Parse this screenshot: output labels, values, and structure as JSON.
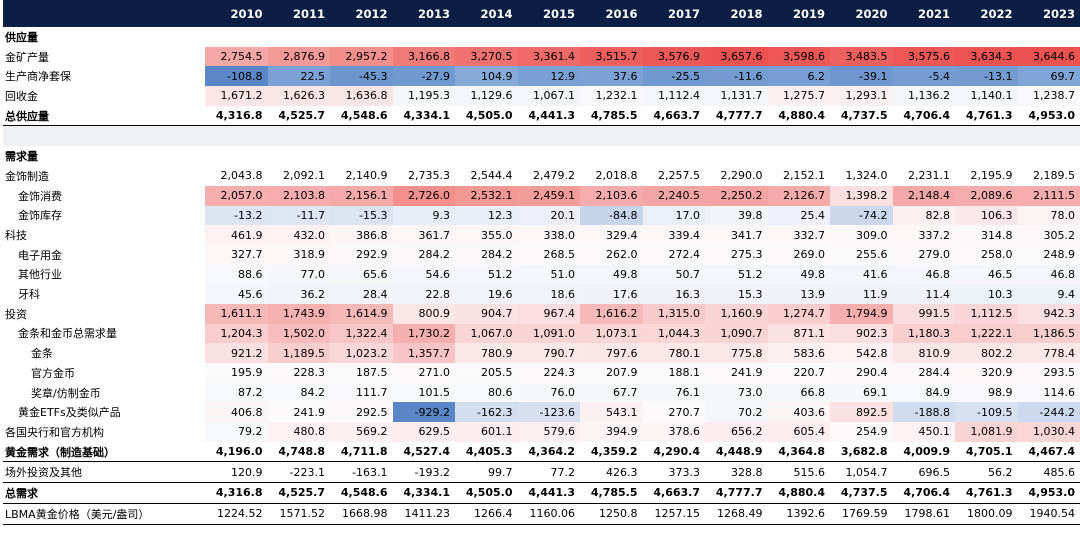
{
  "years": [
    "2010",
    "2011",
    "2012",
    "2013",
    "2014",
    "2015",
    "2016",
    "2017",
    "2018",
    "2019",
    "2020",
    "2021",
    "2022",
    "2023"
  ],
  "rows": [
    {
      "type": "section",
      "label": "供应量"
    },
    {
      "type": "row",
      "label": "金矿产量",
      "indent": 0,
      "values": [
        "2,754.5",
        "2,876.9",
        "2,957.2",
        "3,166.8",
        "3,270.5",
        "3,361.4",
        "3,515.7",
        "3,576.9",
        "3,657.6",
        "3,598.6",
        "3,483.5",
        "3,575.6",
        "3,634.3",
        "3,644.6"
      ],
      "colors": [
        "#f4a8a6",
        "#f39a98",
        "#f28f8d",
        "#f17b79",
        "#f07270",
        "#ef6a68",
        "#ee5e5c",
        "#ed5957",
        "#ec5250",
        "#ed5755",
        "#ee605e",
        "#ed5856",
        "#ec5351",
        "#ec5250"
      ]
    },
    {
      "type": "row",
      "label": "生产商净套保",
      "indent": 0,
      "values": [
        "-108.8",
        "22.5",
        "-45.3",
        "-27.9",
        "104.9",
        "12.9",
        "37.6",
        "-25.5",
        "-11.6",
        "6.2",
        "-39.1",
        "-5.4",
        "-13.1",
        "69.7"
      ],
      "colors": [
        "#5b87c8",
        "#7aa0d4",
        "#6d96cf",
        "#7099d1",
        "#86a9d8",
        "#79a0d4",
        "#7ca2d5",
        "#7199d1",
        "#739bd2",
        "#779fd3",
        "#6e97d0",
        "#749cd2",
        "#739bd2",
        "#7fa4d6"
      ]
    },
    {
      "type": "row",
      "label": "回收金",
      "indent": 0,
      "values": [
        "1,671.2",
        "1,626.3",
        "1,636.8",
        "1,195.3",
        "1,129.6",
        "1,067.1",
        "1,232.1",
        "1,112.4",
        "1,131.7",
        "1,275.7",
        "1,293.1",
        "1,136.2",
        "1,140.1",
        "1,238.7"
      ],
      "colors": [
        "#fbe5e6",
        "#fbe6e7",
        "#fbe6e7",
        "#f6f7fb",
        "#f4f6fb",
        "#f3f5fb",
        "#f8f8fc",
        "#f4f6fb",
        "#f4f6fb",
        "#faf0f2",
        "#faeff1",
        "#f4f6fb",
        "#f4f6fb",
        "#f8f8fc"
      ]
    },
    {
      "type": "bold",
      "label": "总供应量",
      "values": [
        "4,316.8",
        "4,525.7",
        "4,548.6",
        "4,334.1",
        "4,505.0",
        "4,441.3",
        "4,785.5",
        "4,663.7",
        "4,777.7",
        "4,880.4",
        "4,737.5",
        "4,706.4",
        "4,761.3",
        "4,953.0"
      ]
    },
    {
      "type": "gap"
    },
    {
      "type": "section",
      "label": "需求量"
    },
    {
      "type": "row",
      "label": "金饰制造",
      "indent": 0,
      "values": [
        "2,043.8",
        "2,092.1",
        "2,140.9",
        "2,735.3",
        "2,544.4",
        "2,479.2",
        "2,018.8",
        "2,257.5",
        "2,290.0",
        "2,152.1",
        "1,324.0",
        "2,231.1",
        "2,195.9",
        "2,189.5"
      ],
      "colors": [
        "",
        "",
        "",
        "",
        "",
        "",
        "",
        "",
        "",
        "",
        "",
        "",
        "",
        ""
      ]
    },
    {
      "type": "row",
      "label": "金饰消费",
      "indent": 1,
      "values": [
        "2,057.0",
        "2,103.8",
        "2,156.1",
        "2,726.0",
        "2,532.1",
        "2,459.1",
        "2,103.6",
        "2,240.5",
        "2,250.2",
        "2,126.7",
        "1,398.2",
        "2,148.4",
        "2,089.6",
        "2,111.5"
      ],
      "colors": [
        "#f6aeae",
        "#f6acac",
        "#f5a9a9",
        "#f3908e",
        "#f49896",
        "#f49d9b",
        "#f6acac",
        "#f5a5a4",
        "#f5a4a3",
        "#f6abab",
        "#fbdfe0",
        "#f5a8a8",
        "#f6adad",
        "#f6acac"
      ]
    },
    {
      "type": "row",
      "label": "金饰库存",
      "indent": 1,
      "values": [
        "-13.2",
        "-11.7",
        "-15.3",
        "9.3",
        "12.3",
        "20.1",
        "-84.8",
        "17.0",
        "39.8",
        "25.4",
        "-74.2",
        "82.8",
        "106.3",
        "78.0"
      ],
      "colors": [
        "#dde5f3",
        "#dee6f3",
        "#dce4f2",
        "#e8edf7",
        "#e9eef7",
        "#eceff8",
        "#c6d4ec",
        "#ebeff8",
        "#f3f4fa",
        "#eef1f9",
        "#cad7ed",
        "#faf0f2",
        "#fae8ea",
        "#fbf2f4"
      ]
    },
    {
      "type": "row",
      "label": "科技",
      "indent": 0,
      "values": [
        "461.9",
        "432.0",
        "386.8",
        "361.7",
        "355.0",
        "338.0",
        "329.4",
        "339.4",
        "341.7",
        "332.7",
        "309.0",
        "337.2",
        "314.8",
        "305.2"
      ],
      "colors": [
        "#fdf1f2",
        "#fdf2f3",
        "#fdf4f5",
        "#fdf5f6",
        "#fdf5f6",
        "#fdf6f7",
        "#fdf6f7",
        "#fdf6f7",
        "#fdf6f7",
        "#fdf6f7",
        "#fcf7f8",
        "#fdf6f7",
        "#fcf7f8",
        "#fcf7f8"
      ]
    },
    {
      "type": "row",
      "label": "电子用金",
      "indent": 1,
      "values": [
        "327.7",
        "318.9",
        "292.9",
        "284.2",
        "284.2",
        "268.5",
        "262.0",
        "272.4",
        "275.3",
        "269.0",
        "255.6",
        "279.0",
        "258.0",
        "248.9"
      ],
      "colors": [
        "#fdf6f7",
        "#fdf6f7",
        "#fcf8f9",
        "#fcf8f9",
        "#fcf8f9",
        "#fcf9fa",
        "#fcf9fa",
        "#fcf9fa",
        "#fcf9fa",
        "#fcf9fa",
        "#fbfafb",
        "#fcf8f9",
        "#fcf9fa",
        "#fbfafb"
      ]
    },
    {
      "type": "row",
      "label": "其他行业",
      "indent": 1,
      "values": [
        "88.6",
        "77.0",
        "65.6",
        "54.6",
        "51.2",
        "51.0",
        "49.8",
        "50.7",
        "51.2",
        "49.8",
        "41.6",
        "46.8",
        "46.5",
        "46.8"
      ],
      "colors": [
        "#f7f8fc",
        "#f6f7fb",
        "#f5f7fb",
        "#f4f6fb",
        "#f4f6fb",
        "#f4f6fb",
        "#f4f6fb",
        "#f4f6fb",
        "#f4f6fb",
        "#f4f6fb",
        "#f3f5fa",
        "#f4f6fb",
        "#f4f6fb",
        "#f4f6fb"
      ]
    },
    {
      "type": "row",
      "label": "牙科",
      "indent": 1,
      "values": [
        "45.6",
        "36.2",
        "28.4",
        "22.8",
        "19.6",
        "18.6",
        "17.6",
        "16.3",
        "15.3",
        "13.9",
        "11.9",
        "11.4",
        "10.3",
        "9.4"
      ],
      "colors": [
        "#f4f6fb",
        "#f2f4fa",
        "#f1f4fa",
        "#f0f3f9",
        "#f0f3f9",
        "#f0f3f9",
        "#eff2f9",
        "#eff2f9",
        "#eff2f9",
        "#eff2f9",
        "#eff2f9",
        "#eff2f9",
        "#eef2f9",
        "#eef2f9"
      ]
    },
    {
      "type": "row",
      "label": "投资",
      "indent": 0,
      "values": [
        "1,611.1",
        "1,743.9",
        "1,614.9",
        "800.9",
        "904.7",
        "967.4",
        "1,616.2",
        "1,315.0",
        "1,160.9",
        "1,274.7",
        "1,794.9",
        "991.5",
        "1,112.5",
        "942.3"
      ],
      "colors": [
        "#f7b8b8",
        "#f6b1b1",
        "#f7b8b8",
        "#fce7e8",
        "#fce1e3",
        "#fcdee0",
        "#f7b8b8",
        "#f9cacb",
        "#fad3d5",
        "#f9cccd",
        "#f6aeae",
        "#fbdcde",
        "#fad5d7",
        "#fcdfe1"
      ]
    },
    {
      "type": "row",
      "label": "金条和金币总需求量",
      "indent": 1,
      "values": [
        "1,204.3",
        "1,502.0",
        "1,322.4",
        "1,730.2",
        "1,067.0",
        "1,091.0",
        "1,073.1",
        "1,044.3",
        "1,090.7",
        "871.1",
        "902.3",
        "1,180.3",
        "1,222.1",
        "1,186.5"
      ],
      "colors": [
        "#f9cdce",
        "#f8bcbc",
        "#f9c6c7",
        "#f6afaf",
        "#fad5d6",
        "#fad4d5",
        "#fad5d6",
        "#fad6d7",
        "#fad4d5",
        "#fbe1e2",
        "#fbdfe0",
        "#f9cecf",
        "#f9cccd",
        "#f9cecf"
      ]
    },
    {
      "type": "row",
      "label": "金条",
      "indent": 2,
      "values": [
        "921.2",
        "1,189.5",
        "1,023.2",
        "1,357.7",
        "780.9",
        "790.7",
        "797.6",
        "780.1",
        "775.8",
        "583.6",
        "542.8",
        "810.9",
        "802.2",
        "778.4"
      ],
      "colors": [
        "#fbe0e1",
        "#f9cecf",
        "#fad8d9",
        "#f8c4c5",
        "#fce8e9",
        "#fce8e9",
        "#fce7e8",
        "#fce8e9",
        "#fce8e9",
        "#fcf0f1",
        "#fcf2f3",
        "#fce7e8",
        "#fce7e8",
        "#fce8e9"
      ]
    },
    {
      "type": "row",
      "label": "官方金币",
      "indent": 2,
      "values": [
        "195.9",
        "228.3",
        "187.5",
        "271.0",
        "205.5",
        "224.3",
        "207.9",
        "188.1",
        "241.9",
        "220.7",
        "290.4",
        "284.4",
        "320.9",
        "293.5"
      ],
      "colors": [
        "#fbfafb",
        "#fcf9fa",
        "#fbfafb",
        "#fcf9fa",
        "#fbfafb",
        "#fcf9fa",
        "#fbfafb",
        "#fbfafb",
        "#fcf9fa",
        "#fcf9fa",
        "#fcf8f9",
        "#fcf8f9",
        "#fdf6f7",
        "#fcf8f9"
      ]
    },
    {
      "type": "row",
      "label": "奖章/仿制金币",
      "indent": 2,
      "values": [
        "87.2",
        "84.2",
        "111.7",
        "101.5",
        "80.6",
        "76.0",
        "67.7",
        "76.1",
        "73.0",
        "66.8",
        "69.1",
        "84.9",
        "98.9",
        "114.6"
      ],
      "colors": [
        "#f7f8fc",
        "#f6f8fc",
        "#f9f9fc",
        "#f8f9fc",
        "#f6f8fc",
        "#f6f7fb",
        "#f5f7fb",
        "#f6f7fb",
        "#f6f7fb",
        "#f5f7fb",
        "#f5f7fb",
        "#f6f8fc",
        "#f8f8fc",
        "#f9f9fc"
      ]
    },
    {
      "type": "row",
      "label": "黄金ETFs及类似产品",
      "indent": 1,
      "values": [
        "406.8",
        "241.9",
        "292.5",
        "-929.2",
        "-162.3",
        "-123.6",
        "543.1",
        "270.7",
        "70.2",
        "403.6",
        "892.5",
        "-188.8",
        "-109.5",
        "-244.2"
      ],
      "colors": [
        "#fdf4f5",
        "#fcf9fa",
        "#fcf8f9",
        "#5a86c7",
        "#d2ddf0",
        "#d6e0f1",
        "#fcf1f2",
        "#fcf9fa",
        "#f5f7fb",
        "#fdf4f5",
        "#fbe1e2",
        "#cfdbef",
        "#d8e1f2",
        "#ccd8ee"
      ]
    },
    {
      "type": "row",
      "label": "各国央行和官方机构",
      "indent": 0,
      "values": [
        "79.2",
        "480.8",
        "569.2",
        "629.5",
        "601.1",
        "579.6",
        "394.9",
        "378.6",
        "656.2",
        "605.4",
        "254.9",
        "450.1",
        "1,081.9",
        "1,030.4"
      ],
      "colors": [
        "#f6f8fc",
        "#fdf1f2",
        "#fcf0f1",
        "#fcedee",
        "#fceeef",
        "#fcefef",
        "#fdf4f5",
        "#fdf4f5",
        "#fcecee",
        "#fceeef",
        "#fcf9fa",
        "#fdf2f3",
        "#fad4d5",
        "#fad6d7"
      ]
    },
    {
      "type": "boldline",
      "label": "黄金需求（制造基础）",
      "values": [
        "4,196.0",
        "4,748.8",
        "4,711.8",
        "4,527.4",
        "4,405.3",
        "4,364.2",
        "4,359.2",
        "4,290.4",
        "4,448.9",
        "4,364.8",
        "3,682.8",
        "4,009.9",
        "4,705.1",
        "4,467.4"
      ]
    },
    {
      "type": "plain",
      "label": "场外投资及其他",
      "values": [
        "120.9",
        "-223.1",
        "-163.1",
        "-193.2",
        "99.7",
        "77.2",
        "426.3",
        "373.3",
        "328.8",
        "515.6",
        "1,054.7",
        "696.5",
        "56.2",
        "485.6"
      ]
    },
    {
      "type": "boldline",
      "label": "总需求",
      "values": [
        "4,316.8",
        "4,525.7",
        "4,548.6",
        "4,334.1",
        "4,505.0",
        "4,441.3",
        "4,785.5",
        "4,663.7",
        "4,777.7",
        "4,880.4",
        "4,737.5",
        "4,706.4",
        "4,761.3",
        "4,953.0"
      ]
    },
    {
      "type": "plain",
      "label": "LBMA黄金价格（美元/盎司）",
      "values": [
        "1224.52",
        "1571.52",
        "1668.98",
        "1411.23",
        "1266.4",
        "1160.06",
        "1250.8",
        "1257.15",
        "1268.49",
        "1392.6",
        "1769.59",
        "1798.61",
        "1800.09",
        "1940.54"
      ]
    }
  ]
}
